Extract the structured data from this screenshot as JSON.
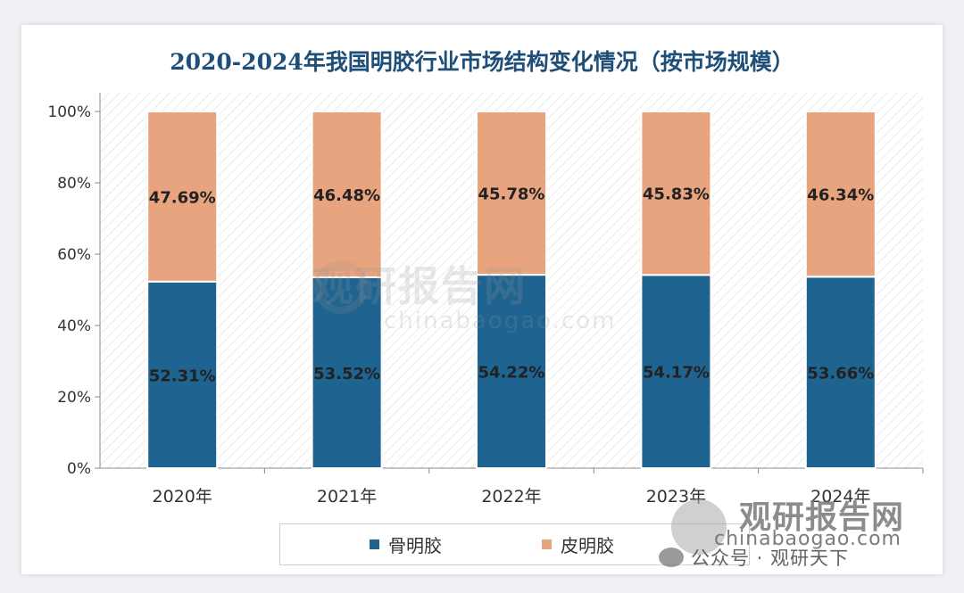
{
  "chart_data": {
    "type": "bar",
    "stacked": true,
    "title": "2020-2024年我国明胶行业市场结构变化情况（按市场规模）",
    "categories": [
      "2020年",
      "2021年",
      "2022年",
      "2023年",
      "2024年"
    ],
    "series": [
      {
        "name": "骨明胶",
        "values": [
          52.31,
          53.52,
          54.22,
          54.17,
          53.66
        ],
        "labels": [
          "52.31%",
          "53.52%",
          "54.22%",
          "54.17%",
          "53.66%"
        ],
        "color": "#1f6391"
      },
      {
        "name": "皮明胶",
        "values": [
          47.69,
          46.48,
          45.78,
          45.83,
          46.34
        ],
        "labels": [
          "47.69%",
          "46.48%",
          "45.78%",
          "45.83%",
          "46.34%"
        ],
        "color": "#e8a47e"
      }
    ],
    "yticks": [
      "0%",
      "20%",
      "40%",
      "60%",
      "80%",
      "100%"
    ],
    "ylim": [
      0,
      100
    ],
    "legend_position": "bottom",
    "plot_background": "diagonal-hatch"
  },
  "watermark": {
    "name": "观研报告网",
    "url": "chinabaogao.com"
  },
  "footer": {
    "brand_name": "观研报告网",
    "brand_url": "chinabaogao.com",
    "account": "公众号 · 观研天下"
  }
}
